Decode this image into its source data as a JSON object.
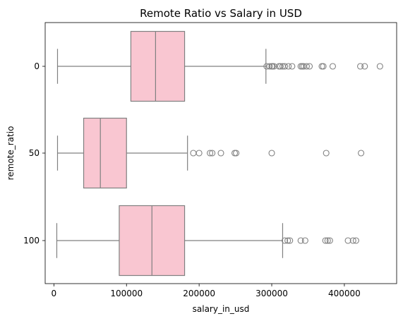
{
  "chart_data": {
    "type": "boxplot",
    "orientation": "horizontal",
    "title": "Remote Ratio vs Salary in USD",
    "xlabel": "salary_in_usd",
    "ylabel": "remote_ratio",
    "xlim": [
      -12000,
      472000
    ],
    "x_ticks": [
      0,
      100000,
      200000,
      300000,
      400000
    ],
    "x_tick_labels": [
      "0",
      "100000",
      "200000",
      "300000",
      "400000"
    ],
    "grid": false,
    "legend": "none",
    "box_color": "#f9c6d1",
    "line_color": "#808080",
    "categories": [
      "0",
      "50",
      "100"
    ],
    "boxes": [
      {
        "category": "0",
        "whisker_low": 5000,
        "q1": 106000,
        "median": 140000,
        "q3": 180000,
        "whisker_high": 292000,
        "outliers": [
          293000,
          297000,
          300000,
          301000,
          303000,
          310000,
          312000,
          315000,
          318000,
          323000,
          328000,
          340000,
          342000,
          344000,
          348000,
          352000,
          369000,
          371000,
          384000,
          422000,
          428000,
          449000
        ]
      },
      {
        "category": "50",
        "whisker_low": 5000,
        "q1": 41000,
        "median": 64000,
        "q3": 100000,
        "whisker_high": 184000,
        "outliers": [
          192000,
          200000,
          215000,
          218000,
          230000,
          249000,
          251000,
          300000,
          375000,
          423000
        ]
      },
      {
        "category": "100",
        "whisker_low": 4000,
        "q1": 90000,
        "median": 135000,
        "q3": 180000,
        "whisker_high": 315000,
        "outliers": [
          318000,
          322000,
          325000,
          340000,
          346000,
          374000,
          377000,
          380000,
          405000,
          412000,
          416000
        ]
      }
    ]
  }
}
